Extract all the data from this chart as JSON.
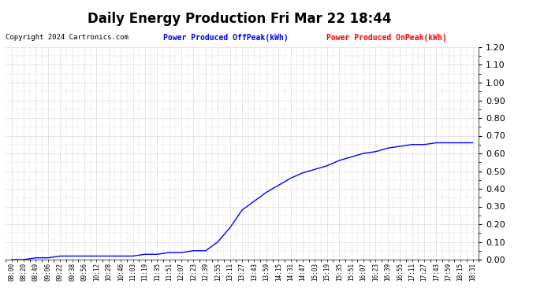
{
  "title": "Daily Energy Production Fri Mar 22 18:44",
  "copyright_text": "Copyright 2024 Cartronics.com",
  "legend_offpeak": "Power Produced OffPeak(kWh)",
  "legend_onpeak": "Power Produced OnPeak(kWh)",
  "offpeak_color": "blue",
  "onpeak_color": "red",
  "background_color": "white",
  "grid_color": "#bbbbbb",
  "ylim": [
    0.0,
    1.2
  ],
  "yticks": [
    0.0,
    0.1,
    0.2,
    0.3,
    0.4,
    0.5,
    0.6,
    0.7,
    0.8,
    0.9,
    1.0,
    1.1,
    1.2
  ],
  "x_labels": [
    "08:00",
    "08:20",
    "08:49",
    "09:06",
    "09:22",
    "09:38",
    "09:56",
    "10:12",
    "10:28",
    "10:46",
    "11:03",
    "11:19",
    "11:35",
    "11:51",
    "12:07",
    "12:23",
    "12:39",
    "12:55",
    "13:11",
    "13:27",
    "13:43",
    "13:59",
    "14:15",
    "14:31",
    "14:47",
    "15:03",
    "15:19",
    "15:35",
    "15:51",
    "16:07",
    "16:23",
    "16:39",
    "16:55",
    "17:11",
    "17:27",
    "17:43",
    "17:59",
    "18:15",
    "18:31"
  ],
  "offpeak_values": [
    0.0,
    0.0,
    0.01,
    0.01,
    0.02,
    0.02,
    0.02,
    0.02,
    0.02,
    0.02,
    0.02,
    0.03,
    0.03,
    0.04,
    0.04,
    0.05,
    0.05,
    0.1,
    0.18,
    0.28,
    0.33,
    0.38,
    0.42,
    0.46,
    0.49,
    0.51,
    0.53,
    0.56,
    0.58,
    0.6,
    0.61,
    0.63,
    0.64,
    0.65,
    0.65,
    0.66,
    0.66,
    0.66,
    0.66
  ],
  "title_fontsize": 12,
  "copyright_fontsize": 6.5,
  "legend_fontsize": 7,
  "ytick_fontsize": 8,
  "xtick_fontsize": 5.5
}
